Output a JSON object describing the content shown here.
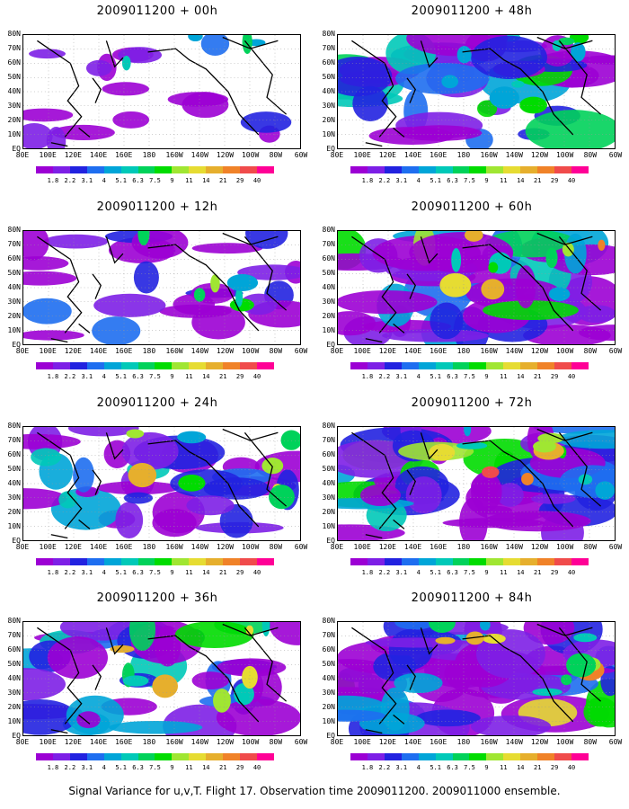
{
  "colorbar": {
    "labels": [
      "1.8",
      "2.2",
      "3.1",
      "4",
      "5.1",
      "6.3",
      "7.5",
      "9",
      "11",
      "14",
      "21",
      "29",
      "40"
    ],
    "colors": [
      "#9c00d4",
      "#7d1fe6",
      "#2222e0",
      "#1e6ef0",
      "#00a5d8",
      "#00c9b8",
      "#00d25a",
      "#00dc00",
      "#a0e632",
      "#e6dc32",
      "#e6af2d",
      "#f08228",
      "#f04b4b",
      "#ff0096"
    ]
  },
  "axes": {
    "x_ticks": [
      "80E",
      "100E",
      "120E",
      "140E",
      "160E",
      "180",
      "160W",
      "140W",
      "120W",
      "100W",
      "80W",
      "60W"
    ],
    "y_ticks": [
      "80N",
      "70N",
      "60N",
      "50N",
      "40N",
      "30N",
      "20N",
      "10N",
      "EQ"
    ]
  },
  "panels": [
    {
      "title": "2009011200 + 00h",
      "coverage": 0.16
    },
    {
      "title": "2009011200 + 48h",
      "coverage": 0.7
    },
    {
      "title": "2009011200 + 12h",
      "coverage": 0.36
    },
    {
      "title": "2009011200 + 60h",
      "coverage": 0.82
    },
    {
      "title": "2009011200 + 24h",
      "coverage": 0.56
    },
    {
      "title": "2009011200 + 72h",
      "coverage": 0.88
    },
    {
      "title": "2009011200 + 36h",
      "coverage": 0.66
    },
    {
      "title": "2009011200 + 84h",
      "coverage": 0.94
    }
  ],
  "caption": "Signal Variance for u,v,T. Flight 17. Observation time 2009011200. 2009011000 ensemble.",
  "chart_data": {
    "type": "heatmap",
    "panel_titles": [
      "2009011200 + 00h",
      "2009011200 + 12h",
      "2009011200 + 24h",
      "2009011200 + 36h",
      "2009011200 + 48h",
      "2009011200 + 60h",
      "2009011200 + 72h",
      "2009011200 + 84h"
    ],
    "x_ticks": [
      "80E",
      "100E",
      "120E",
      "140E",
      "160E",
      "180",
      "160W",
      "140W",
      "120W",
      "100W",
      "80W",
      "60W"
    ],
    "y_ticks": [
      "80N",
      "70N",
      "60N",
      "50N",
      "40N",
      "30N",
      "20N",
      "10N",
      "EQ"
    ],
    "color_levels": [
      1.8,
      2.2,
      3.1,
      4,
      5.1,
      6.3,
      7.5,
      9,
      11,
      14,
      21,
      29,
      40
    ],
    "caption": "Signal Variance for u,v,T. Flight 17. Observation time 2009011200. 2009011000 ensemble."
  }
}
